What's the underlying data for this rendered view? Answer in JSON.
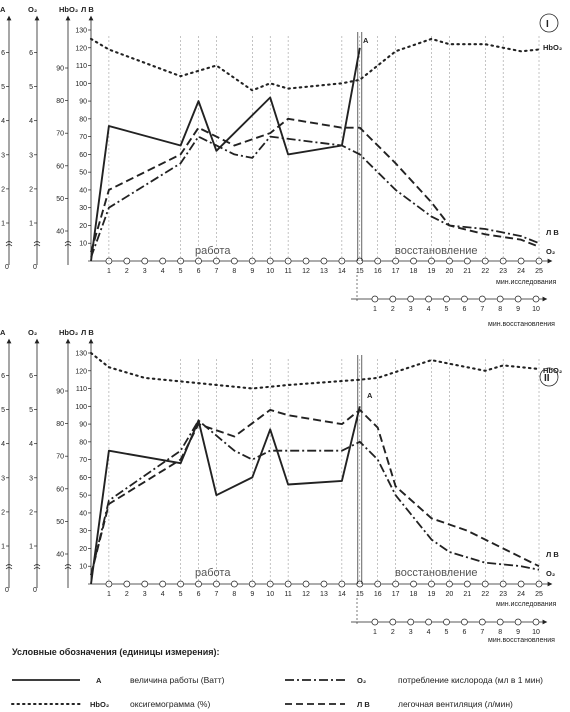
{
  "legend": {
    "title": "Условные обозначения (единицы измерения):",
    "items": [
      {
        "key": "A",
        "symbol": "А",
        "text": "величина работы (Ватт)",
        "style": "solid"
      },
      {
        "key": "O2",
        "symbol": "О₂",
        "text": "потребление кислорода (мл в 1 мин)",
        "style": "dashdot"
      },
      {
        "key": "HbO2",
        "symbol": "HbO₂",
        "text": "оксигемограмма (%)",
        "style": "dotted"
      },
      {
        "key": "LV",
        "symbol": "Л В",
        "text": "легочная вентиляция (л/мин)",
        "style": "dashed"
      }
    ]
  },
  "axes_text": {
    "A": "А",
    "O2": "О₂",
    "HbO2": "HbO₂",
    "LV": "Л В",
    "work": "работа",
    "recovery": "восстановление",
    "x1_caption": "мин.исследования",
    "x2_caption": "мин.восстановления",
    "end_A": "А",
    "end_HbO2": "HbO₂",
    "end_LV": "Л В",
    "end_O2": "О₂"
  },
  "colors": {
    "ink": "#222222",
    "gray": "#888888"
  },
  "chart_data": [
    {
      "type": "line",
      "panel": "I",
      "x_main_ticks": [
        1,
        2,
        3,
        4,
        5,
        6,
        7,
        8,
        9,
        10,
        11,
        12,
        13,
        14,
        15,
        16,
        17,
        18,
        19,
        20,
        21,
        22,
        23,
        24,
        25
      ],
      "x_recovery_ticks": [
        1,
        2,
        3,
        4,
        5,
        6,
        7,
        8,
        9,
        10
      ],
      "a_ticks": [
        1,
        2,
        3,
        4,
        5,
        6
      ],
      "o2_ticks": [
        1,
        2,
        3,
        4,
        5,
        6
      ],
      "hbo2_ticks": [
        40,
        50,
        60,
        70,
        80,
        90
      ],
      "lv_ticks": [
        0,
        10,
        20,
        30,
        40,
        50,
        60,
        70,
        80,
        90,
        100,
        110,
        120,
        130
      ],
      "ylim": [
        0,
        130
      ],
      "series": [
        {
          "key": "A",
          "x": [
            0,
            1,
            5,
            6,
            7,
            10,
            11,
            14,
            15
          ],
          "values": [
            0,
            76,
            65,
            90,
            62,
            92,
            60,
            65,
            120
          ]
        },
        {
          "key": "HbO2",
          "x": [
            0,
            1,
            5,
            7,
            9,
            10,
            11,
            14,
            15,
            17,
            19,
            20,
            22,
            24,
            25
          ],
          "values": [
            125,
            119,
            104,
            110,
            96,
            100,
            97,
            100,
            102,
            118,
            125,
            122,
            122,
            118,
            119
          ]
        },
        {
          "key": "LV",
          "x": [
            0,
            1,
            5,
            6,
            8,
            10,
            11,
            14,
            15,
            17,
            19,
            20,
            22,
            24,
            25
          ],
          "values": [
            5,
            40,
            60,
            75,
            65,
            72,
            80,
            75,
            75,
            55,
            33,
            20,
            15,
            12,
            8
          ]
        },
        {
          "key": "O2",
          "x": [
            0,
            1,
            5,
            6,
            8,
            9,
            10,
            14,
            15,
            17,
            19,
            20,
            22,
            24,
            25
          ],
          "values": [
            2,
            30,
            55,
            70,
            60,
            58,
            70,
            65,
            60,
            40,
            25,
            20,
            18,
            14,
            10
          ]
        }
      ]
    },
    {
      "type": "line",
      "panel": "II",
      "x_main_ticks": [
        1,
        2,
        3,
        4,
        5,
        6,
        7,
        8,
        9,
        10,
        11,
        12,
        13,
        14,
        15,
        16,
        17,
        18,
        19,
        20,
        21,
        22,
        23,
        24,
        25
      ],
      "x_recovery_ticks": [
        1,
        2,
        3,
        4,
        5,
        6,
        7,
        8,
        9,
        10
      ],
      "a_ticks": [
        1,
        2,
        3,
        4,
        5,
        6
      ],
      "o2_ticks": [
        1,
        2,
        3,
        4,
        5,
        6
      ],
      "hbo2_ticks": [
        40,
        50,
        60,
        70,
        80,
        90
      ],
      "lv_ticks": [
        0,
        10,
        20,
        30,
        40,
        50,
        60,
        70,
        80,
        90,
        100,
        110,
        120,
        130
      ],
      "ylim": [
        0,
        130
      ],
      "series": [
        {
          "key": "A",
          "x": [
            0,
            1,
            5,
            6,
            7,
            9,
            10,
            11,
            14,
            15
          ],
          "values": [
            0,
            75,
            68,
            92,
            50,
            60,
            87,
            56,
            58,
            100
          ]
        },
        {
          "key": "HbO2",
          "x": [
            0,
            1,
            3,
            5,
            9,
            11,
            15,
            16,
            19,
            20,
            22,
            23,
            25
          ],
          "values": [
            130,
            122,
            116,
            114,
            110,
            112,
            115,
            116,
            126,
            124,
            120,
            123,
            121
          ]
        },
        {
          "key": "LV",
          "x": [
            0,
            1,
            5,
            6,
            8,
            10,
            11,
            14,
            15,
            16,
            17,
            19,
            21,
            23,
            25
          ],
          "values": [
            5,
            45,
            70,
            90,
            83,
            98,
            95,
            90,
            98,
            88,
            55,
            37,
            30,
            20,
            10
          ]
        },
        {
          "key": "O2",
          "x": [
            0,
            1,
            5,
            6,
            8,
            9,
            10,
            14,
            15,
            16,
            17,
            19,
            20,
            22,
            24,
            25
          ],
          "values": [
            5,
            47,
            75,
            92,
            75,
            70,
            75,
            75,
            80,
            70,
            50,
            25,
            18,
            12,
            10,
            8
          ]
        }
      ]
    }
  ]
}
